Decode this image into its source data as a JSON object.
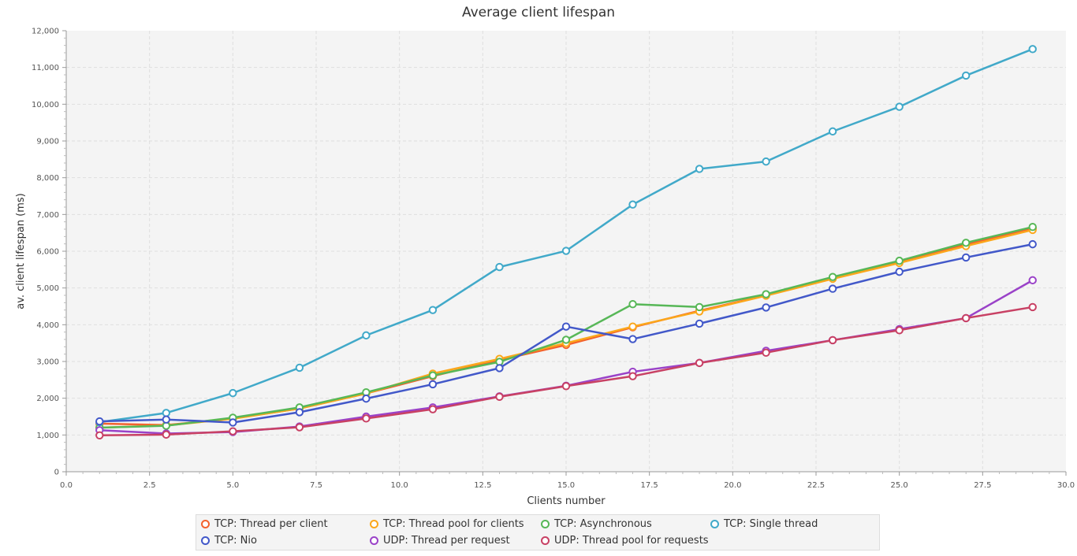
{
  "chart_data": {
    "type": "line",
    "title": "Average client lifespan",
    "xlabel": "Clients number",
    "ylabel": "av. client lifespan (ms)",
    "xlim": [
      0,
      30
    ],
    "ylim": [
      0,
      12000
    ],
    "x_ticks": [
      "0.0",
      "2.5",
      "5.0",
      "7.5",
      "10.0",
      "12.5",
      "15.0",
      "17.5",
      "20.0",
      "22.5",
      "25.0",
      "27.5",
      "30.0"
    ],
    "y_ticks": [
      "0",
      "1,000",
      "2,000",
      "3,000",
      "4,000",
      "5,000",
      "6,000",
      "7,000",
      "8,000",
      "9,000",
      "10,000",
      "11,000",
      "12,000"
    ],
    "grid": true,
    "legend_position": "bottom",
    "x": [
      1,
      3,
      5,
      7,
      9,
      11,
      13,
      15,
      17,
      19,
      21,
      23,
      25,
      27,
      29
    ],
    "series": [
      {
        "name": "TCP: Thread per client",
        "color": "#f3622d",
        "values": [
          1310,
          1270,
          1450,
          1720,
          2130,
          2600,
          3040,
          3450,
          3930,
          4380,
          4800,
          5270,
          5700,
          6180,
          6620
        ]
      },
      {
        "name": "TCP: Thread pool for clients",
        "color": "#fba71b",
        "values": [
          1200,
          1260,
          1440,
          1720,
          2130,
          2670,
          3070,
          3500,
          3950,
          4360,
          4790,
          5250,
          5680,
          6140,
          6580
        ]
      },
      {
        "name": "TCP: Asynchronous",
        "color": "#57b757",
        "values": [
          1200,
          1250,
          1470,
          1750,
          2160,
          2620,
          2990,
          3590,
          4560,
          4480,
          4830,
          5300,
          5740,
          6230,
          6660
        ]
      },
      {
        "name": "TCP: Single thread",
        "color": "#41a9c9",
        "values": [
          1350,
          1600,
          2140,
          2830,
          3710,
          4400,
          5570,
          6010,
          7270,
          8240,
          8440,
          9260,
          9930,
          10780,
          11500
        ]
      },
      {
        "name": "TCP: Nio",
        "color": "#4258c9",
        "values": [
          1370,
          1420,
          1340,
          1620,
          1990,
          2380,
          2820,
          3950,
          3610,
          4030,
          4470,
          4980,
          5440,
          5830,
          6190
        ]
      },
      {
        "name": "UDP: Thread per request",
        "color": "#9a42c8",
        "values": [
          1130,
          1040,
          1080,
          1230,
          1500,
          1750,
          2050,
          2340,
          2720,
          2960,
          3290,
          3580,
          3880,
          4180,
          5210
        ]
      },
      {
        "name": "UDP: Thread pool for requests",
        "color": "#c84164",
        "values": [
          990,
          1010,
          1100,
          1210,
          1450,
          1700,
          2040,
          2330,
          2600,
          2960,
          3240,
          3580,
          3850,
          4180,
          4480
        ]
      }
    ]
  }
}
